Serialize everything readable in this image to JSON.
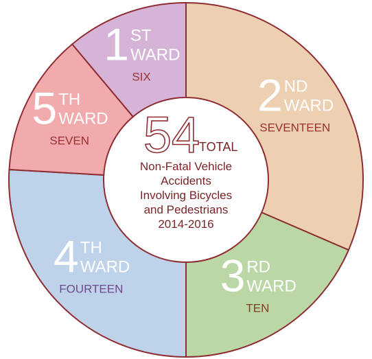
{
  "chart_data": {
    "type": "donut",
    "category_numbers": [
      "2",
      "3",
      "4",
      "5",
      "1"
    ],
    "category_suffixes": [
      "ND",
      "RD",
      "TH",
      "TH",
      "ST"
    ],
    "ward_label": "WARD",
    "values": [
      17,
      10,
      14,
      7,
      6
    ],
    "value_labels": [
      "SEVENTEEN",
      "TEN",
      "FOURTEEN",
      "SEVEN",
      "SIX"
    ],
    "colors": [
      "#edcfb1",
      "#bcd7a6",
      "#bed2ea",
      "#f2abac",
      "#d5b4d8"
    ],
    "label_colors": [
      "#9c2f33",
      "#7a3f1f",
      "#6d4a8c",
      "#9c2f33",
      "#9c2f33"
    ],
    "outline_color": "#8e2d31",
    "total": 54,
    "total_label": "TOTAL",
    "description_lines": [
      "Non-Fatal Vehicle",
      "Accidents",
      "Involving Bicycles",
      "and Pedestrians",
      "2014-2016"
    ]
  }
}
